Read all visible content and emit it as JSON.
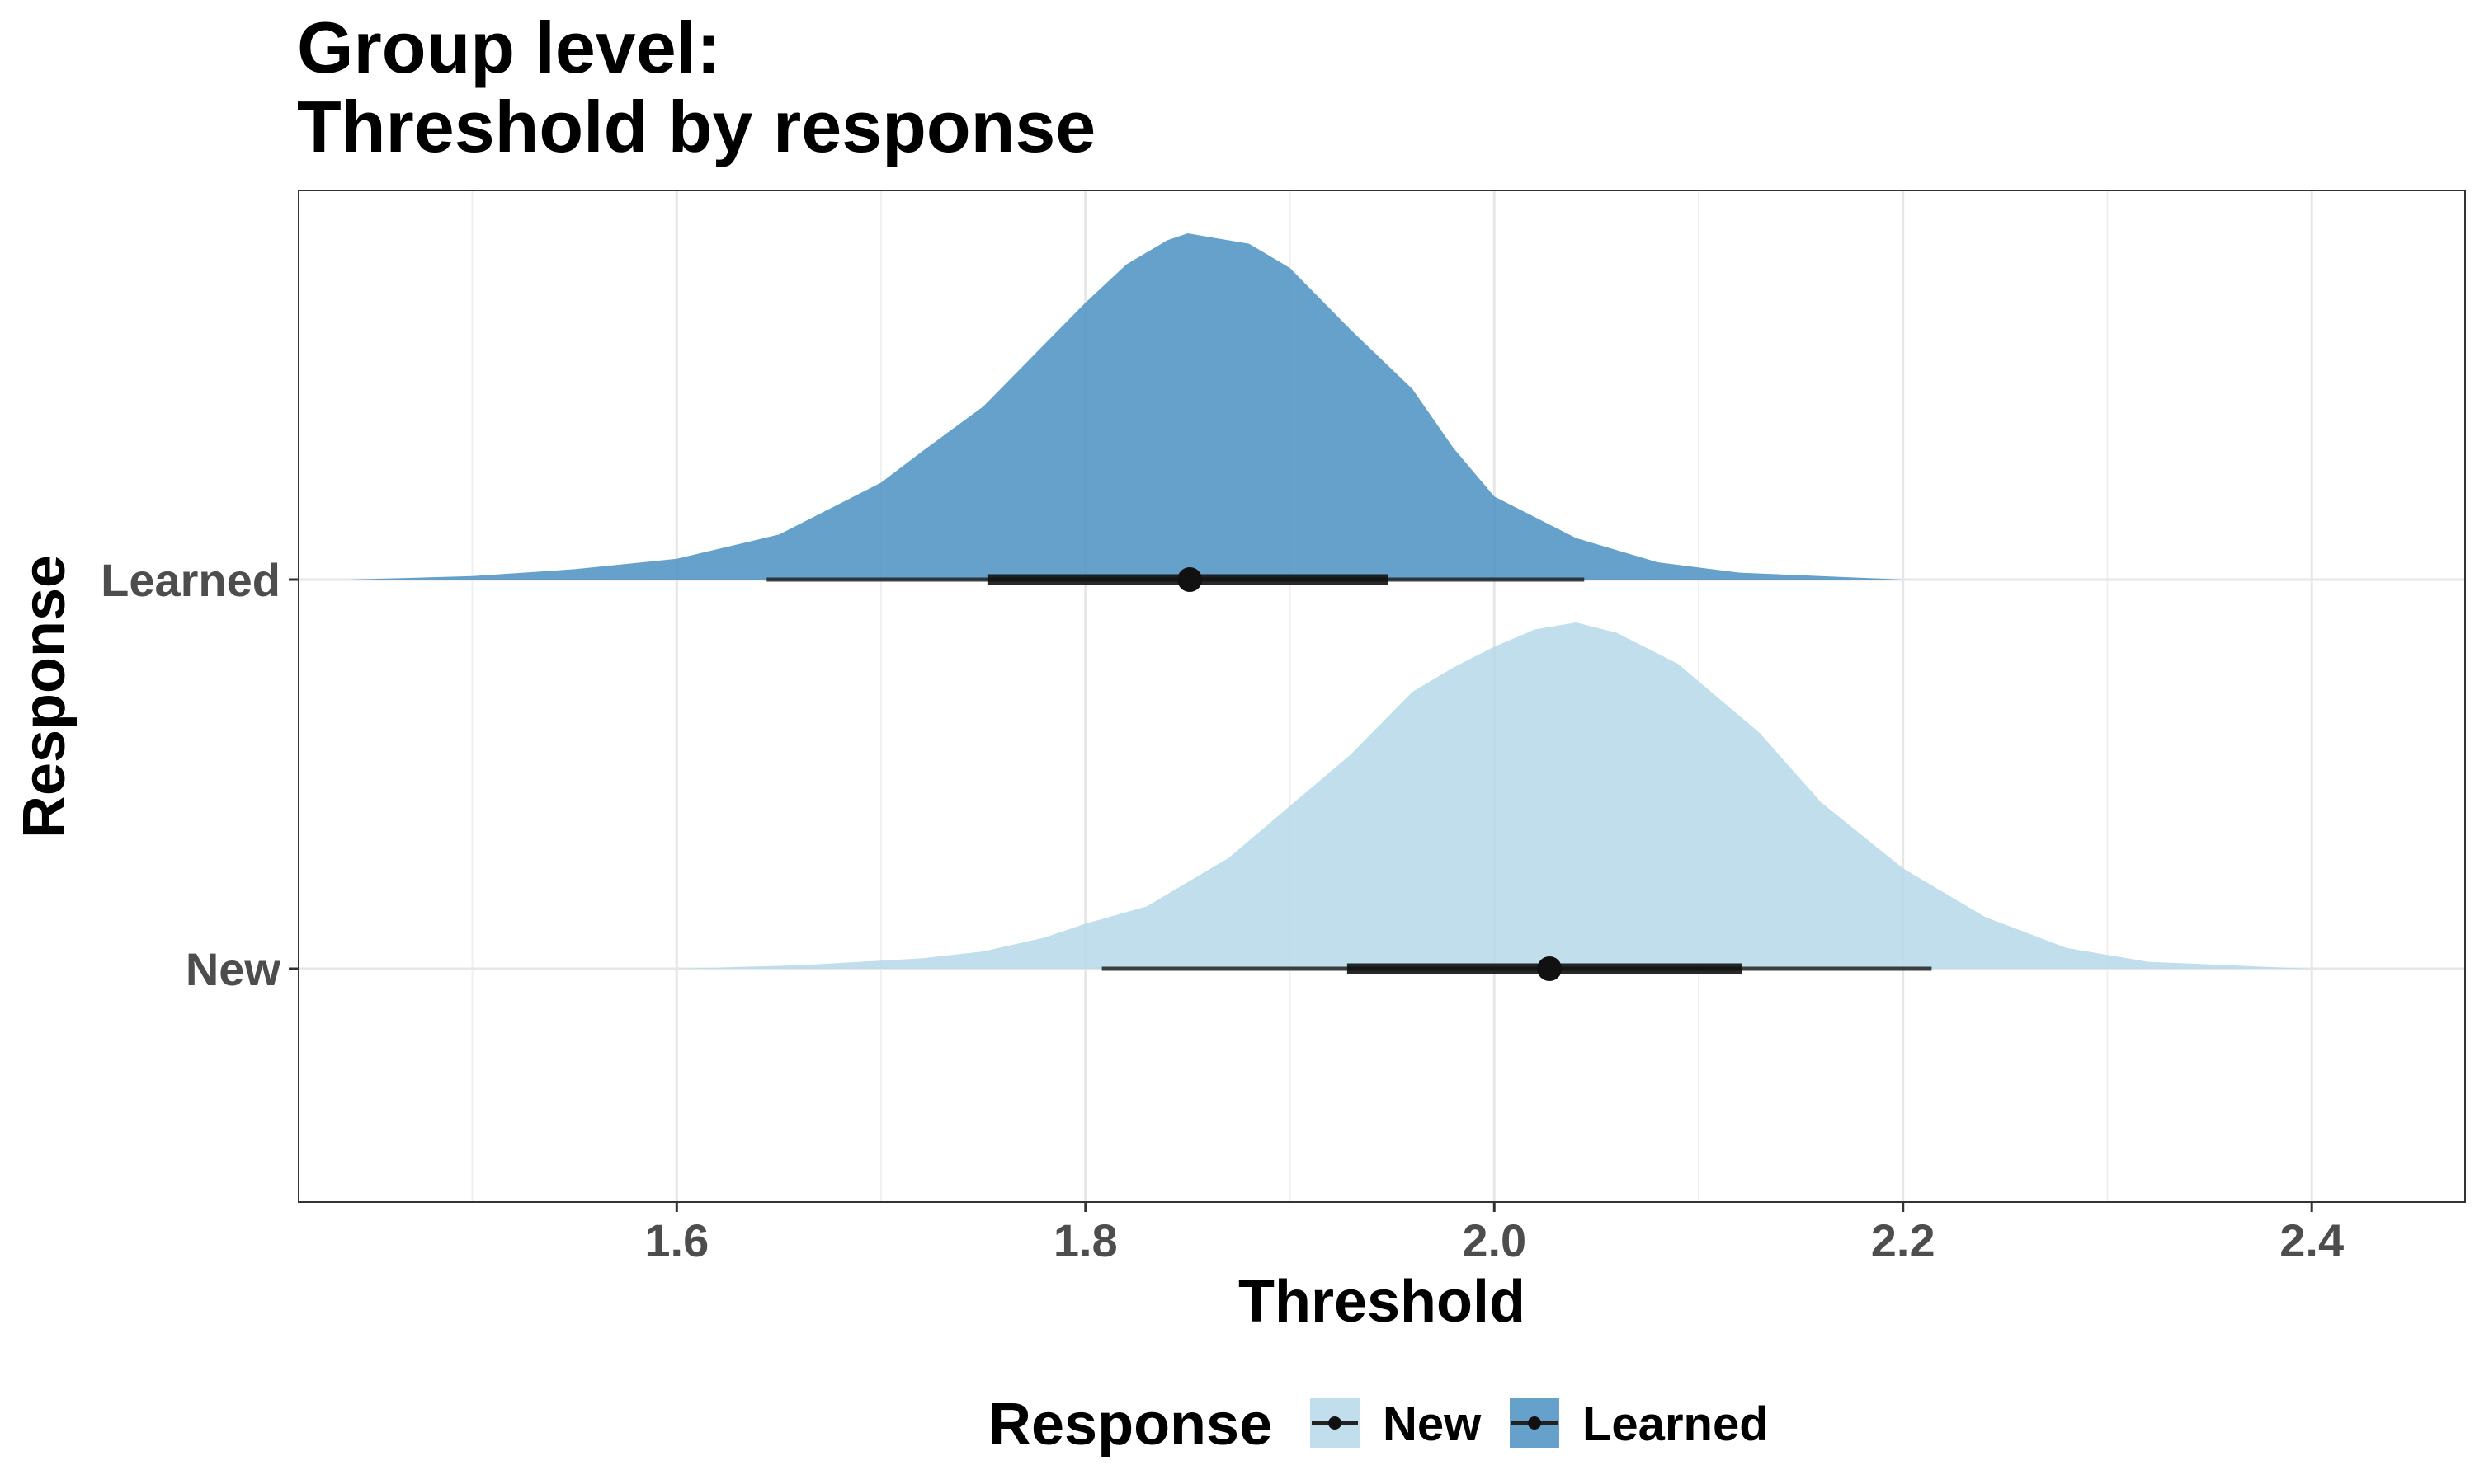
{
  "chart_data": {
    "type": "density-interval",
    "title_line1": "Group level:",
    "title_line2": "Threshold by response",
    "xlabel": "Threshold",
    "ylabel": "Response",
    "xlim": [
      1.415,
      2.475
    ],
    "x_ticks": [
      "1.6",
      "1.8",
      "2.0",
      "2.2",
      "2.4"
    ],
    "x_tick_values": [
      1.6,
      1.8,
      2.0,
      2.2,
      2.4
    ],
    "categories": [
      "Learned",
      "New"
    ],
    "grid": true,
    "legend": {
      "title": "Response",
      "placement": "bottom",
      "entries": [
        "New",
        "Learned"
      ]
    },
    "series": [
      {
        "name": "Learned",
        "color": "#4a90c2",
        "point": 1.851,
        "interval_66": [
          1.752,
          1.948
        ],
        "interval_95": [
          1.644,
          2.044
        ],
        "density": [
          [
            1.44,
            0.0
          ],
          [
            1.5,
            0.01
          ],
          [
            1.55,
            0.03
          ],
          [
            1.6,
            0.06
          ],
          [
            1.65,
            0.13
          ],
          [
            1.7,
            0.28
          ],
          [
            1.72,
            0.37
          ],
          [
            1.75,
            0.5
          ],
          [
            1.78,
            0.68
          ],
          [
            1.8,
            0.8
          ],
          [
            1.82,
            0.91
          ],
          [
            1.84,
            0.98
          ],
          [
            1.85,
            1.0
          ],
          [
            1.86,
            0.99
          ],
          [
            1.88,
            0.97
          ],
          [
            1.9,
            0.9
          ],
          [
            1.93,
            0.72
          ],
          [
            1.96,
            0.55
          ],
          [
            1.98,
            0.38
          ],
          [
            2.0,
            0.24
          ],
          [
            2.04,
            0.12
          ],
          [
            2.08,
            0.05
          ],
          [
            2.12,
            0.02
          ],
          [
            2.2,
            0.0
          ]
        ]
      },
      {
        "name": "New",
        "color": "#b5d8e8",
        "point": 2.027,
        "interval_66": [
          1.928,
          2.121
        ],
        "interval_95": [
          1.808,
          2.214
        ],
        "density": [
          [
            1.6,
            0.0
          ],
          [
            1.66,
            0.01
          ],
          [
            1.72,
            0.03
          ],
          [
            1.75,
            0.05
          ],
          [
            1.78,
            0.09
          ],
          [
            1.8,
            0.13
          ],
          [
            1.83,
            0.18
          ],
          [
            1.87,
            0.32
          ],
          [
            1.9,
            0.47
          ],
          [
            1.93,
            0.62
          ],
          [
            1.96,
            0.8
          ],
          [
            1.98,
            0.87
          ],
          [
            2.0,
            0.93
          ],
          [
            2.02,
            0.98
          ],
          [
            2.04,
            1.0
          ],
          [
            2.06,
            0.97
          ],
          [
            2.09,
            0.88
          ],
          [
            2.13,
            0.68
          ],
          [
            2.16,
            0.48
          ],
          [
            2.2,
            0.29
          ],
          [
            2.24,
            0.15
          ],
          [
            2.28,
            0.06
          ],
          [
            2.32,
            0.02
          ],
          [
            2.4,
            0.0
          ]
        ]
      }
    ]
  }
}
